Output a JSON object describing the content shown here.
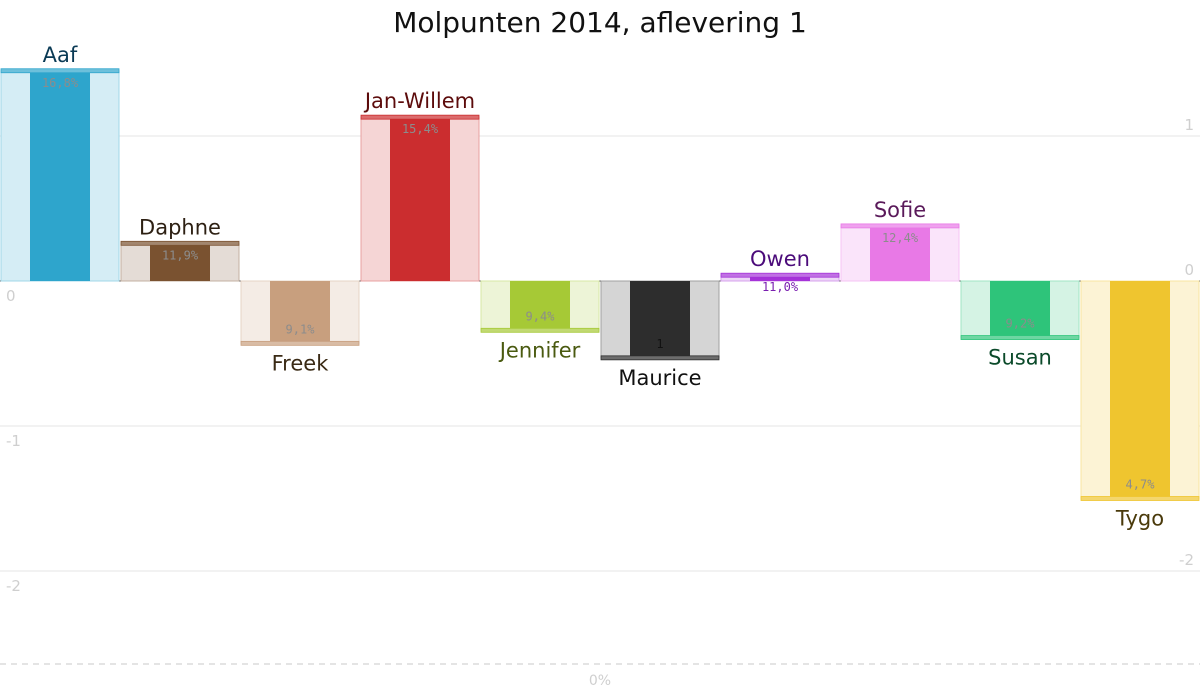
{
  "chart_data": {
    "type": "bar",
    "title": "Molpunten 2014, aflevering 1",
    "categories": [
      "Aaf",
      "Daphne",
      "Freek",
      "Jan-Willem",
      "Jennifer",
      "Maurice",
      "Owen",
      "Sofie",
      "Susan",
      "Tygo"
    ],
    "values": [
      1.45,
      0.26,
      -0.43,
      1.13,
      -0.34,
      -0.53,
      0.04,
      0.38,
      -0.39,
      -1.5
    ],
    "percentages": [
      "16,8%",
      "11,9%",
      "9,1%",
      "15,4%",
      "9,4%",
      "1",
      "11,0%",
      "12,4%",
      "9,2%",
      "4,7%"
    ],
    "colors": [
      "#2ea5cc",
      "#7a5230",
      "#c89f7e",
      "#cb2d2f",
      "#a6c936",
      "#2d2d2d",
      "#a533d8",
      "#e879e6",
      "#2ec47a",
      "#efc52f"
    ],
    "label_colors": [
      "#0a3a55",
      "#2d2013",
      "#3a2a15",
      "#5c0b0b",
      "#4a5a10",
      "#111111",
      "#4b0b7a",
      "#5a1a5a",
      "#0b4a2a",
      "#4a3a0b"
    ],
    "ylim": [
      -2.6,
      1.5
    ],
    "yticks": [
      -2,
      -1,
      0,
      1
    ],
    "ytick_labels_left": [
      "-2",
      "-1",
      "0",
      "1"
    ],
    "ytick_labels_right": [
      "-2",
      "-1",
      "0",
      "1"
    ],
    "xaxis_label": "0%",
    "grid": true,
    "xlabel": "",
    "ylabel": ""
  }
}
